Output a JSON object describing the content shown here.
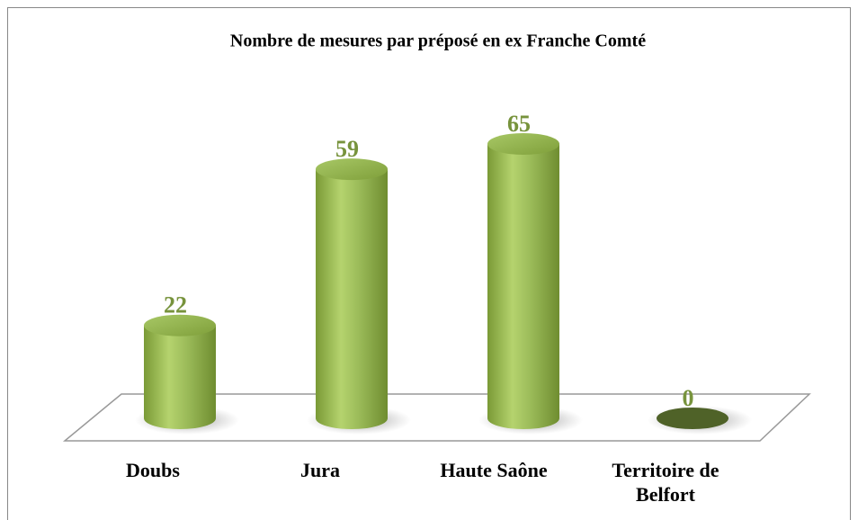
{
  "chart_data": {
    "type": "bar",
    "title": "Nombre de mesures par préposé en ex Franche Comté",
    "categories": [
      "Doubs",
      "Jura",
      "Haute Saône",
      "Territoire de Belfort"
    ],
    "values": [
      22,
      59,
      65,
      0
    ],
    "color": "#9bbb59"
  }
}
